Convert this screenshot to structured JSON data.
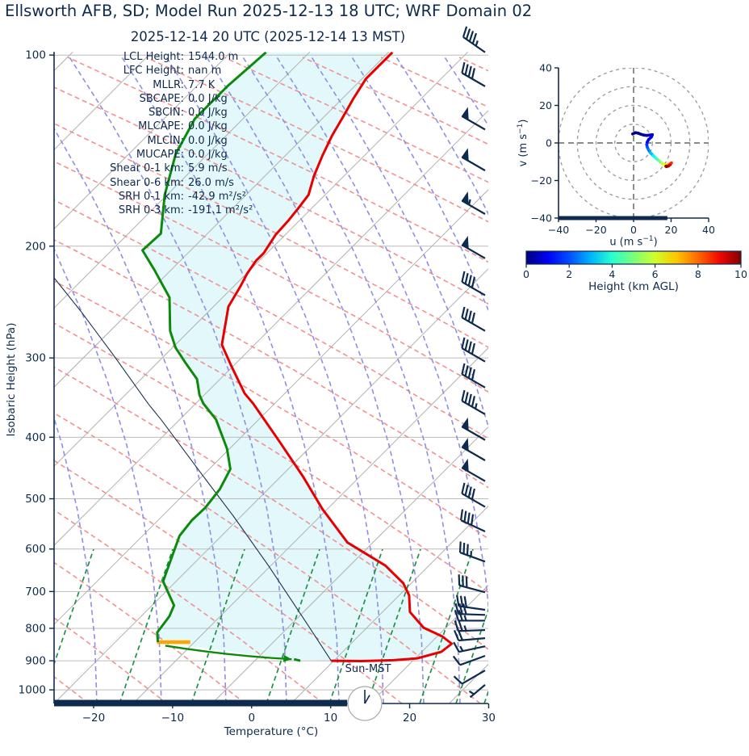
{
  "header": {
    "title": "Ellsworth AFB, SD; Model Run 2025-12-13 18 UTC; WRF Domain 02",
    "subtitle": "2025-12-14 20 UTC  (2025-12-14 13 MST)"
  },
  "stats": {
    "lines": [
      {
        "label": "LCL Height:",
        "value": "1544.0 m"
      },
      {
        "label": "LFC Height:",
        "value": "nan m"
      },
      {
        "label": "MLLR:",
        "value": "7.7 K"
      },
      {
        "label": "SBCAPE:",
        "value": "0.0 J/kg"
      },
      {
        "label": "SBCIN:",
        "value": "0.0 J/kg"
      },
      {
        "label": "MLCAPE:",
        "value": "0.0 J/kg"
      },
      {
        "label": "MLCIN:",
        "value": "0.0 J/kg"
      },
      {
        "label": "MUCAPE:",
        "value": "0.0 J/kg"
      },
      {
        "label": "Shear 0-1 km:",
        "value": "5.9 m/s"
      },
      {
        "label": "Shear 0-6 km:",
        "value": "26.0 m/s"
      },
      {
        "label": "SRH 0-1 km:",
        "value": "-42.9 m²/s²"
      },
      {
        "label": "SRH 0-3 km:",
        "value": "-191.1 m²/s²"
      }
    ]
  },
  "colors": {
    "text_navy": "#0e2a4d",
    "temperature": "#e60000",
    "dewpoint": "#0c8a0c",
    "parcel": "#1c3050",
    "shading": "#e3f8fa",
    "isotherm": "#b0b0b0",
    "isobar": "#bcbcbc",
    "dry_adiabat": "#f29191",
    "moist_adiabat": "#8f8fe4",
    "mixing_ratio": "#1e9245",
    "lcl_marker": "#ffa500",
    "barb": "#0e2a4d",
    "ring_gray": "#9a9a9a"
  },
  "chart_data": {
    "type": "line",
    "subtype": "skewt-log-p sounding with hodograph",
    "skewt": {
      "xlabel": "Temperature (°C)",
      "ylabel": "Isobaric Height (hPa)",
      "xlim_c": [
        -25,
        30
      ],
      "xticks_c": [
        -20,
        -10,
        0,
        10,
        20,
        30
      ],
      "pressure_lim_hpa": [
        1050,
        100
      ],
      "pressure_ticks_hpa": [
        100,
        200,
        300,
        400,
        500,
        600,
        700,
        800,
        900,
        1000
      ],
      "temperature_profile_p_t": [
        [
          99,
          -64.5
        ],
        [
          109,
          -64.5
        ],
        [
          117,
          -63.6
        ],
        [
          125,
          -62.6
        ],
        [
          134,
          -61.6
        ],
        [
          144,
          -60.3
        ],
        [
          155,
          -58.8
        ],
        [
          166,
          -57.1
        ],
        [
          174,
          -56.7
        ],
        [
          182,
          -56.4
        ],
        [
          192,
          -56.2
        ],
        [
          205,
          -55.4
        ],
        [
          211,
          -55.4
        ],
        [
          221,
          -54.9
        ],
        [
          232,
          -54.1
        ],
        [
          249,
          -53.1
        ],
        [
          286,
          -49.1
        ],
        [
          309,
          -45.2
        ],
        [
          341,
          -40.1
        ],
        [
          354,
          -37.7
        ],
        [
          404,
          -29.9
        ],
        [
          461,
          -22.2
        ],
        [
          519,
          -15.6
        ],
        [
          586,
          -8.2
        ],
        [
          637,
          -0.5
        ],
        [
          679,
          4.0
        ],
        [
          710,
          6.3
        ],
        [
          754,
          8.5
        ],
        [
          798,
          12.2
        ],
        [
          824,
          15.7
        ],
        [
          846,
          17.8
        ],
        [
          871,
          17.5
        ],
        [
          892,
          15.3
        ],
        [
          898,
          12.5
        ],
        [
          901,
          8.6
        ],
        [
          900,
          4.7
        ]
      ],
      "dewpoint_profile_p_t": [
        [
          99,
          -80.5
        ],
        [
          112,
          -81.1
        ],
        [
          126,
          -81.1
        ],
        [
          143,
          -79.1
        ],
        [
          166,
          -75.3
        ],
        [
          191,
          -70.9
        ],
        [
          203,
          -71.1
        ],
        [
          218,
          -67.1
        ],
        [
          241,
          -61.7
        ],
        [
          272,
          -57.4
        ],
        [
          289,
          -54.6
        ],
        [
          306,
          -51.3
        ],
        [
          324,
          -47.9
        ],
        [
          343,
          -45.6
        ],
        [
          354,
          -44.0
        ],
        [
          375,
          -40.4
        ],
        [
          417,
          -35.3
        ],
        [
          449,
          -32.3
        ],
        [
          483,
          -31.1
        ],
        [
          516,
          -30.6
        ],
        [
          541,
          -30.7
        ],
        [
          572,
          -30.3
        ],
        [
          637,
          -27.9
        ],
        [
          675,
          -26.6
        ],
        [
          698,
          -24.9
        ],
        [
          736,
          -22.2
        ],
        [
          766,
          -21.4
        ],
        [
          812,
          -20.9
        ],
        [
          841,
          -19.6
        ]
      ],
      "dewpoint_surface_p_t": [
        [
          895,
          -0.2
        ],
        [
          900,
          0.8
        ]
      ],
      "parcel_profile_p_t": [
        [
          900,
          4.7
        ],
        [
          786,
          -3.1
        ],
        [
          637,
          -15.3
        ],
        [
          534,
          -25.8
        ],
        [
          461,
          -34.8
        ],
        [
          376,
          -47.2
        ],
        [
          354,
          -51.0
        ],
        [
          297,
          -61.5
        ],
        [
          254,
          -71.0
        ],
        [
          224,
          -78.9
        ]
      ],
      "lcl_marker": {
        "pressure_hpa": 841,
        "temperature_c": -17.6,
        "half_width_c": 2.1
      },
      "surface_mixing_arrow_p_t": [
        [
          852,
          -18.2
        ],
        [
          895,
          -0.5
        ]
      ],
      "wind_barbs_p_kt_dir": [
        [
          99,
          45,
          305
        ],
        [
          112,
          40,
          300
        ],
        [
          131,
          50,
          300
        ],
        [
          152,
          50,
          300
        ],
        [
          178,
          55,
          300
        ],
        [
          209,
          50,
          300
        ],
        [
          239,
          40,
          300
        ],
        [
          272,
          40,
          300
        ],
        [
          304,
          40,
          300
        ],
        [
          334,
          40,
          300
        ],
        [
          368,
          45,
          300
        ],
        [
          404,
          50,
          300
        ],
        [
          435,
          50,
          300
        ],
        [
          469,
          50,
          300
        ],
        [
          515,
          40,
          300
        ],
        [
          563,
          40,
          295
        ],
        [
          628,
          35,
          290
        ],
        [
          702,
          30,
          285
        ],
        [
          748,
          30,
          278
        ],
        [
          762,
          30,
          272
        ],
        [
          778,
          25,
          270
        ],
        [
          805,
          25,
          268
        ],
        [
          829,
          20,
          265
        ],
        [
          854,
          15,
          258
        ],
        [
          884,
          10,
          250
        ],
        [
          932,
          10,
          240
        ],
        [
          982,
          5,
          230
        ]
      ],
      "sun_clock": {
        "label": "Sun-MST",
        "hour": 13
      },
      "daylight_bar_fraction": 0.675
    },
    "hodograph": {
      "xlabel_html": "u (m s<sup>−1</sup>)",
      "ylabel_html": "v (m s<sup>−1</sup>)",
      "xlim": [
        -40,
        40
      ],
      "ylim": [
        -40,
        40
      ],
      "xticks": [
        -40,
        -20,
        0,
        20,
        40
      ],
      "yticks": [
        -40,
        -20,
        0,
        20,
        40
      ],
      "ring_radii": [
        10,
        20,
        30,
        40
      ],
      "trace_u_v_km": [
        [
          -0.5,
          4.8,
          0
        ],
        [
          1,
          5.5,
          0.05
        ],
        [
          2.5,
          5.2,
          0.1
        ],
        [
          4,
          4.6,
          0.2
        ],
        [
          5.5,
          4.2,
          0.3
        ],
        [
          7,
          4.0,
          0.45
        ],
        [
          8.5,
          4.2,
          0.6
        ],
        [
          10,
          4.4,
          0.75
        ],
        [
          9.5,
          3.2,
          0.9
        ],
        [
          8,
          1.8,
          1.05
        ],
        [
          7.3,
          0.5,
          1.2
        ],
        [
          7,
          -0.8,
          1.5
        ],
        [
          7.3,
          -2.2,
          1.9
        ],
        [
          8,
          -3.8,
          2.3
        ],
        [
          9,
          -5.3,
          2.8
        ],
        [
          10.5,
          -6.8,
          3.4
        ],
        [
          12,
          -8.2,
          4
        ],
        [
          13.5,
          -9.5,
          4.6
        ],
        [
          15,
          -10.7,
          5.3
        ],
        [
          16.5,
          -11.7,
          6
        ],
        [
          18,
          -11.8,
          6.7
        ],
        [
          19.2,
          -11.3,
          7.4
        ],
        [
          20.2,
          -10.6,
          8
        ],
        [
          19.5,
          -11.6,
          8.6
        ],
        [
          18.5,
          -12.3,
          9.2
        ],
        [
          17.5,
          -12.6,
          9.7
        ],
        [
          17.2,
          -12.4,
          10
        ]
      ],
      "baseline_bar_u": [
        -40,
        18
      ]
    },
    "colorbar": {
      "label": "Height (km AGL)",
      "min": 0,
      "max": 10,
      "ticks": [
        0,
        2,
        4,
        6,
        8,
        10
      ],
      "colormap": "jet"
    }
  }
}
